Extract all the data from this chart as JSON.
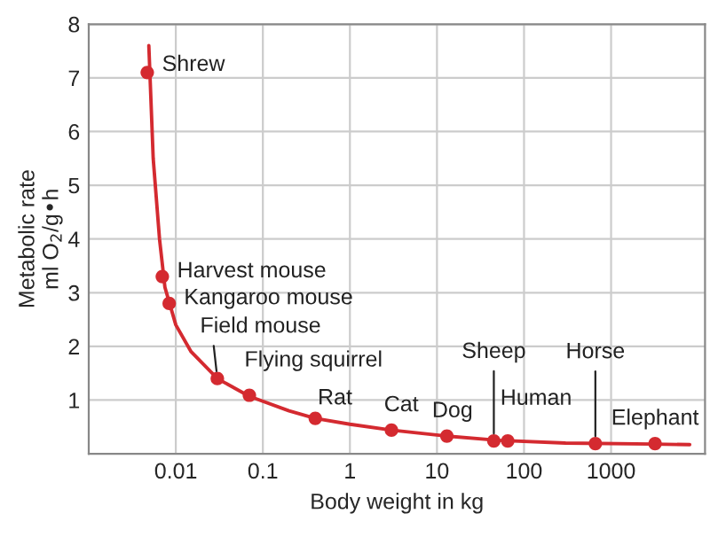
{
  "chart_data": {
    "type": "scatter",
    "xlabel": "Body weight in kg",
    "ylabel": "Metabolic rate\nml O$_{2}$/g•h",
    "log": "x",
    "xlim": [
      0.001,
      12000
    ],
    "ylim": [
      0,
      8
    ],
    "xticks": [
      {
        "value": 0.01,
        "label": "0.01"
      },
      {
        "value": 0.1,
        "label": "0.1"
      },
      1,
      10,
      100,
      1000
    ],
    "yticks": [
      1,
      2,
      3,
      4,
      5,
      6,
      7,
      8
    ],
    "grid": true,
    "marker": "circle",
    "series": [
      {
        "color": "#d42a30",
        "x": [
          0.0047,
          0.007,
          0.0084,
          0.03,
          0.07,
          0.4,
          3,
          13,
          45,
          65,
          660,
          3200
        ],
        "values": [
          7.1,
          3.3,
          2.8,
          1.4,
          1.09,
          0.66,
          0.44,
          0.33,
          0.24,
          0.24,
          0.19,
          0.19
        ]
      },
      {
        "type": "line",
        "color": "#d42a30",
        "marker": "none",
        "x": [
          0.0049,
          0.0055,
          0.0065,
          0.0075,
          0.01,
          0.015,
          0.03,
          0.07,
          0.2,
          0.4,
          1,
          3,
          13,
          50,
          300,
          3000,
          8000
        ],
        "values": [
          7.6,
          5.5,
          4.0,
          3.1,
          2.4,
          1.9,
          1.4,
          1.07,
          0.8,
          0.66,
          0.55,
          0.44,
          0.33,
          0.25,
          0.2,
          0.18,
          0.17
        ]
      }
    ],
    "annotations": [
      {
        "text": "Shrew",
        "x": 0.0047,
        "y": 7.1
      },
      {
        "text": "Harvest mouse",
        "x": 0.007,
        "y": 3.3
      },
      {
        "text": "Kangaroo mouse",
        "x": 0.0084,
        "y": 2.8
      },
      {
        "text": "Field mouse",
        "x": 0.03,
        "y": 1.4
      },
      {
        "text": "Flying squirrel",
        "x": 0.07,
        "y": 1.09
      },
      {
        "text": "Rat",
        "x": 0.4,
        "y": 0.66
      },
      {
        "text": "Cat",
        "x": 3,
        "y": 0.44
      },
      {
        "text": "Dog",
        "x": 13,
        "y": 0.33
      },
      {
        "text": "Sheep",
        "x": 45,
        "y": 0.24
      },
      {
        "text": "Human",
        "x": 65,
        "y": 0.24
      },
      {
        "text": "Horse",
        "x": 660,
        "y": 0.19
      },
      {
        "text": "Elephant",
        "x": 3200,
        "y": 0.19
      }
    ]
  }
}
